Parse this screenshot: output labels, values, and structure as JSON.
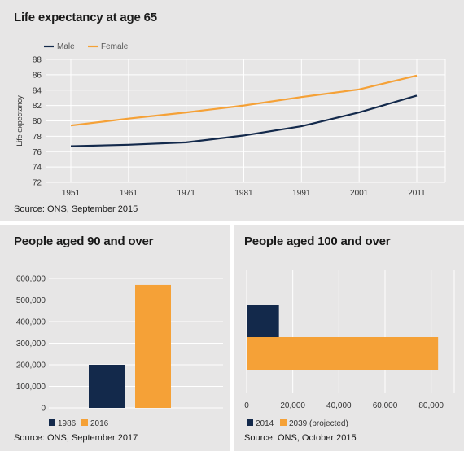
{
  "colors": {
    "navy": "#13294b",
    "orange": "#f5a137",
    "grid": "#ffffff",
    "panel": "#e7e6e6"
  },
  "chart_data": [
    {
      "type": "line",
      "title": "Life expectancy at age 65",
      "ylabel": "Life expectancy",
      "xlabel": "",
      "x": [
        1951,
        1961,
        1971,
        1981,
        1991,
        2001,
        2011
      ],
      "x_ticks": [
        "1951",
        "1961",
        "1971",
        "1981",
        "1991",
        "2001",
        "2011"
      ],
      "ylim": [
        72,
        88
      ],
      "y_ticks": [
        "72",
        "74",
        "76",
        "78",
        "80",
        "82",
        "84",
        "86",
        "88"
      ],
      "series": [
        {
          "name": "Male",
          "color": "#13294b",
          "values": [
            76.7,
            76.9,
            77.2,
            78.1,
            79.3,
            81.1,
            83.3
          ]
        },
        {
          "name": "Female",
          "color": "#f5a137",
          "values": [
            79.4,
            80.3,
            81.1,
            82.0,
            83.1,
            84.1,
            85.9
          ]
        }
      ],
      "legend": "top-left",
      "grid": true,
      "source": "Source: ONS, September 2015"
    },
    {
      "type": "bar",
      "title": "People aged 90 and over",
      "categories": [
        "1986",
        "2016"
      ],
      "values": [
        200000,
        570000
      ],
      "colors": [
        "#13294b",
        "#f5a137"
      ],
      "ylim": [
        0,
        600000
      ],
      "y_ticks": [
        "0",
        "100,000",
        "200,000",
        "300,000",
        "400,000",
        "500,000",
        "600,000"
      ],
      "legend": "bottom-left",
      "grid": true,
      "source": "Source: ONS, September 2017"
    },
    {
      "type": "bar",
      "orientation": "horizontal",
      "title": "People aged 100 and over",
      "categories": [
        "2014",
        "2039 (projected)"
      ],
      "values": [
        14000,
        83000
      ],
      "colors": [
        "#13294b",
        "#f5a137"
      ],
      "xlim": [
        0,
        90000
      ],
      "x_ticks": [
        "0",
        "20,000",
        "40,000",
        "60,000",
        "80,000"
      ],
      "legend": "bottom-left",
      "grid": true,
      "source": "Source: ONS, October 2015"
    }
  ]
}
